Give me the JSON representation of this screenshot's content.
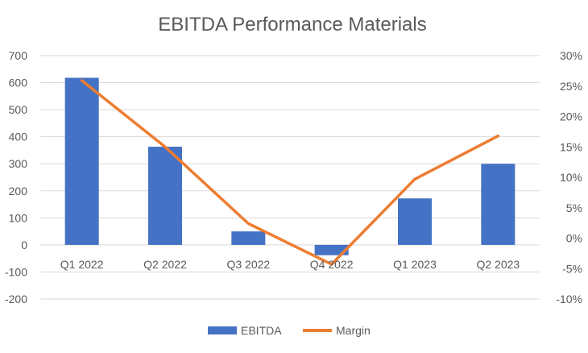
{
  "chart_data": {
    "type": "bar+line",
    "title": "EBITDA Performance Materials",
    "categories": [
      "Q1 2022",
      "Q2 2022",
      "Q3 2022",
      "Q4 2022",
      "Q1 2023",
      "Q2 2023"
    ],
    "series": [
      {
        "name": "EBITDA",
        "type": "bar",
        "axis": "left",
        "color": "#4472C4",
        "values": [
          618,
          363,
          50,
          -38,
          172,
          300
        ]
      },
      {
        "name": "Margin",
        "type": "line",
        "axis": "right",
        "color": "#ED7D31",
        "values": [
          25.9,
          15.0,
          2.4,
          -4.3,
          9.7,
          16.8
        ]
      }
    ],
    "y_left": {
      "min": -200,
      "max": 700,
      "step": 100,
      "ticks": [
        "-200",
        "-100",
        "0",
        "100",
        "200",
        "300",
        "400",
        "500",
        "600",
        "700"
      ]
    },
    "y_right": {
      "min": -10,
      "max": 30,
      "step": 5,
      "ticks": [
        "-10%",
        "-5%",
        "0%",
        "5%",
        "10%",
        "15%",
        "20%",
        "25%",
        "30%"
      ]
    },
    "grid": true,
    "legend_position": "bottom"
  }
}
